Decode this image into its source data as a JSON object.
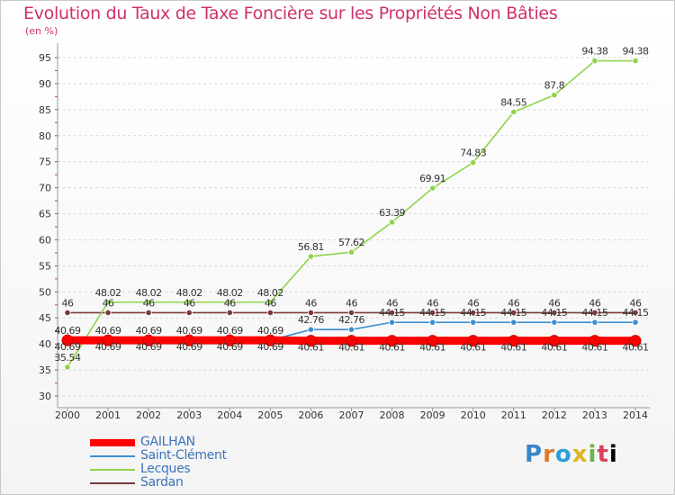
{
  "chart_data": {
    "type": "line",
    "title": "Evolution du Taux de Taxe Foncière sur les Propriétés Non Bâties",
    "ylabel": "(en %)",
    "xlabel": "",
    "ylim": [
      30,
      95
    ],
    "yticks": [
      30,
      35,
      40,
      45,
      50,
      55,
      60,
      65,
      70,
      75,
      80,
      85,
      90,
      95
    ],
    "grid": "horizontal",
    "categories": [
      "2000",
      "2001",
      "2002",
      "2003",
      "2004",
      "2005",
      "2006",
      "2007",
      "2008",
      "2009",
      "2010",
      "2011",
      "2012",
      "2013",
      "2014"
    ],
    "series": [
      {
        "name": "GAILHAN",
        "color": "#ff0000",
        "values": [
          40.69,
          40.69,
          40.69,
          40.69,
          40.69,
          40.69,
          40.61,
          40.61,
          40.61,
          40.61,
          40.61,
          40.61,
          40.61,
          40.61,
          40.61
        ],
        "labels": [
          "40.69",
          "40.69",
          "40.69",
          "40.69",
          "40.69",
          "40.69",
          "40.61",
          "40.61",
          "40.61",
          "40.61",
          "40.61",
          "40.61",
          "40.61",
          "40.61",
          "40.61"
        ]
      },
      {
        "name": "Saint-Clément",
        "color": "#3b8fd3",
        "values": [
          40.69,
          40.69,
          40.69,
          40.69,
          40.69,
          40.69,
          42.76,
          42.76,
          44.15,
          44.15,
          44.15,
          44.15,
          44.15,
          44.15,
          44.15
        ],
        "labels": [
          "40.69",
          "40.69",
          "40.69",
          "40.69",
          "40.69",
          "40.69",
          "42.76",
          "42.76",
          "44.15",
          "44.15",
          "44.15",
          "44.15",
          "44.15",
          "44.15",
          "44.15"
        ]
      },
      {
        "name": "Lecques",
        "color": "#8fd44a",
        "values": [
          35.54,
          48.02,
          48.02,
          48.02,
          48.02,
          48.02,
          56.81,
          57.62,
          63.39,
          69.91,
          74.83,
          84.55,
          87.8,
          94.38,
          94.38
        ],
        "labels": [
          "35.54",
          "48.02",
          "48.02",
          "48.02",
          "48.02",
          "48.02",
          "56.81",
          "57.62",
          "63.39",
          "69.91",
          "74.83",
          "84.55",
          "87.8",
          "94.38",
          "94.38"
        ]
      },
      {
        "name": "Sardan",
        "color": "#7a3a3a",
        "values": [
          46,
          46,
          46,
          46,
          46,
          46,
          46,
          46,
          46,
          46,
          46,
          46,
          46,
          46,
          46
        ],
        "labels": [
          "46",
          "46",
          "46",
          "46",
          "46",
          "46",
          "46",
          "46",
          "46",
          "46",
          "46",
          "46",
          "46",
          "46",
          "46"
        ]
      }
    ]
  },
  "legend": {
    "items": [
      {
        "label": "GAILHAN",
        "color": "#ff0000"
      },
      {
        "label": "Saint-Clément",
        "color": "#3b8fd3"
      },
      {
        "label": "Lecques",
        "color": "#8fd44a"
      },
      {
        "label": "Sardan",
        "color": "#7a3a3a"
      }
    ]
  },
  "logo": {
    "letters": [
      "P",
      "r",
      "o",
      "x",
      "i",
      "t",
      "i"
    ]
  }
}
